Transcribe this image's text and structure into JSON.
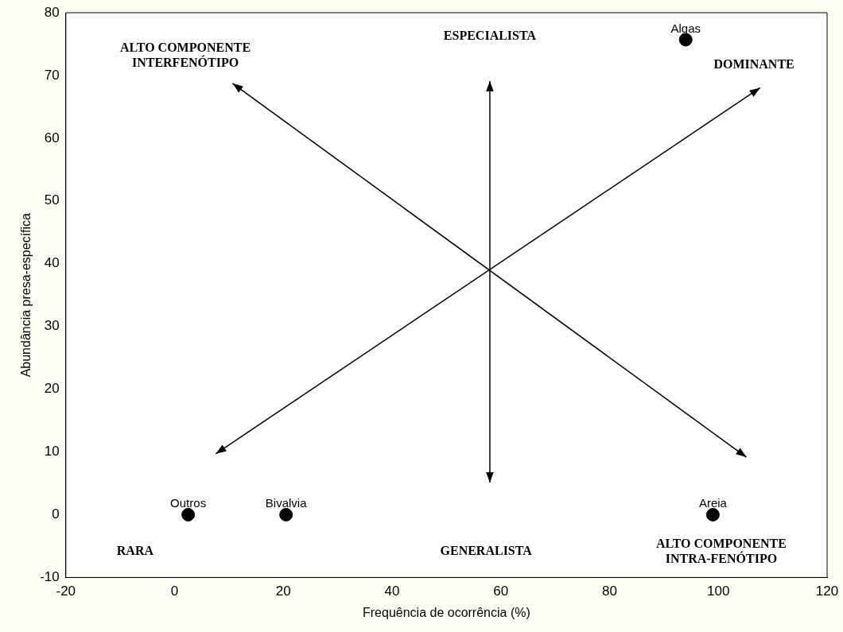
{
  "chart_data": {
    "type": "scatter",
    "xlabel": "Frequência de ocorrência (%)",
    "ylabel": "Abundância presa-específica",
    "x": [
      2.5,
      20.5,
      94,
      99
    ],
    "values": [
      0,
      0,
      75.7,
      0
    ],
    "color": "#000000",
    "marker": "circle",
    "xlim": [
      -20,
      120
    ],
    "xticks": [
      -20,
      0,
      20,
      40,
      60,
      80,
      100,
      120
    ],
    "ylim": [
      -10,
      80
    ],
    "yticks": [
      -10,
      0,
      10,
      20,
      30,
      40,
      50,
      60,
      70,
      80
    ],
    "grid": false,
    "legend": false,
    "annotations": [
      {
        "text": "Outros",
        "x": 2.5,
        "y": 0
      },
      {
        "text": "Bivalvia",
        "x": 20.5,
        "y": 0
      },
      {
        "text": "Algas",
        "x": 94,
        "y": 75.7
      },
      {
        "text": "Areia",
        "x": 99,
        "y": 0
      },
      "ALTO COMPONENTE\nINTERFENÓTIPO",
      "ESPECIALISTA",
      "DOMINANTE",
      "RARA",
      "GENERALISTA",
      "ALTO COMPONENTE\nINTRA-FENÓTIPO"
    ]
  }
}
